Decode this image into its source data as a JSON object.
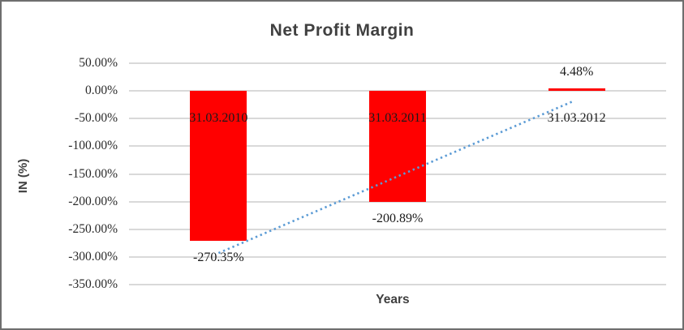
{
  "window": {
    "background_color": "#ffffff",
    "border_color": "#6e6e6e"
  },
  "chart_data": {
    "type": "bar",
    "title": "Net Profit Margin",
    "xlabel": "Years",
    "ylabel": "IN (%)",
    "categories": [
      "31.03.2010",
      "31.03.2011",
      "31.03.2012"
    ],
    "series": [
      {
        "name": "Net Profit Margin",
        "values": [
          -270.35,
          -200.89,
          4.48
        ]
      }
    ],
    "data_labels": [
      "-270.35%",
      "-200.89%",
      "4.48%"
    ],
    "ytick_values": [
      50,
      0,
      -50,
      -100,
      -150,
      -200,
      -250,
      -300,
      -350
    ],
    "ytick_labels": [
      "50.00%",
      "0.00%",
      "-50.00%",
      "-100.00%",
      "-150.00%",
      "-200.00%",
      "-250.00%",
      "-300.00%",
      "-350.00%"
    ],
    "ylim": [
      -350,
      50
    ],
    "grid": true,
    "legend": "none",
    "bar_color": "#ff0000",
    "gridline_color": "#d9d9d9",
    "title_color": "#404040",
    "trendline": {
      "type": "linear",
      "style": "dotted",
      "color": "#5b9bd5",
      "start_value": -293,
      "end_value": -18.5
    }
  }
}
